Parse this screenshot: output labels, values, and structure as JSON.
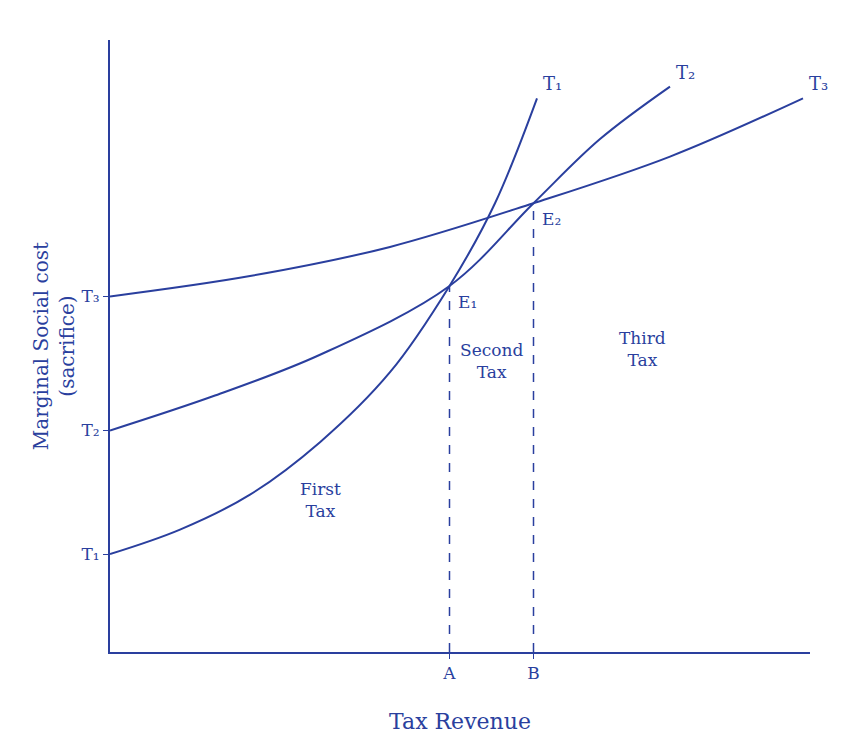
{
  "chart_data": {
    "type": "line",
    "x_label": "Tax Revenue",
    "y_label": "Marginal Social cost (sacrifice)",
    "color": "#2a3f9e",
    "grid": false,
    "line_style": "solid",
    "xlim": [
      0,
      100
    ],
    "ylim": [
      0,
      105
    ],
    "xticks": [
      {
        "value": 48.5,
        "label": "A"
      },
      {
        "value": 60.5,
        "label": "B"
      }
    ],
    "yticks": [
      {
        "value": 16.8,
        "label": "T₁"
      },
      {
        "value": 38,
        "label": "T₂"
      },
      {
        "value": 61,
        "label": "T₃"
      }
    ],
    "series": [
      {
        "name": "T₁",
        "x": [
          0,
          10,
          20,
          30,
          40,
          48.5,
          55,
          61
        ],
        "values": [
          16.8,
          21,
          27,
          36,
          48,
          62.8,
          77,
          95
        ]
      },
      {
        "name": "T₂",
        "x": [
          0,
          15,
          30,
          48.5,
          60.5,
          70,
          80
        ],
        "values": [
          38,
          44,
          51,
          62.8,
          77,
          88,
          97
        ]
      },
      {
        "name": "T₃",
        "x": [
          0,
          20,
          40,
          60.5,
          80,
          99
        ],
        "values": [
          61,
          64.5,
          69.5,
          77,
          85,
          95
        ]
      }
    ],
    "verticals": [
      {
        "x": 48.5,
        "y": 62.8
      },
      {
        "x": 60.5,
        "y": 77
      }
    ],
    "annotations": [
      {
        "text": "E₁",
        "x": 48.5,
        "y": 62.8
      },
      {
        "text": "E₂",
        "x": 60.5,
        "y": 77
      },
      {
        "text": "First Tax",
        "x": 30,
        "y": 26
      },
      {
        "text": "Second Tax",
        "x": 54.5,
        "y": 50
      },
      {
        "text": "Third Tax",
        "x": 76,
        "y": 52
      }
    ]
  }
}
